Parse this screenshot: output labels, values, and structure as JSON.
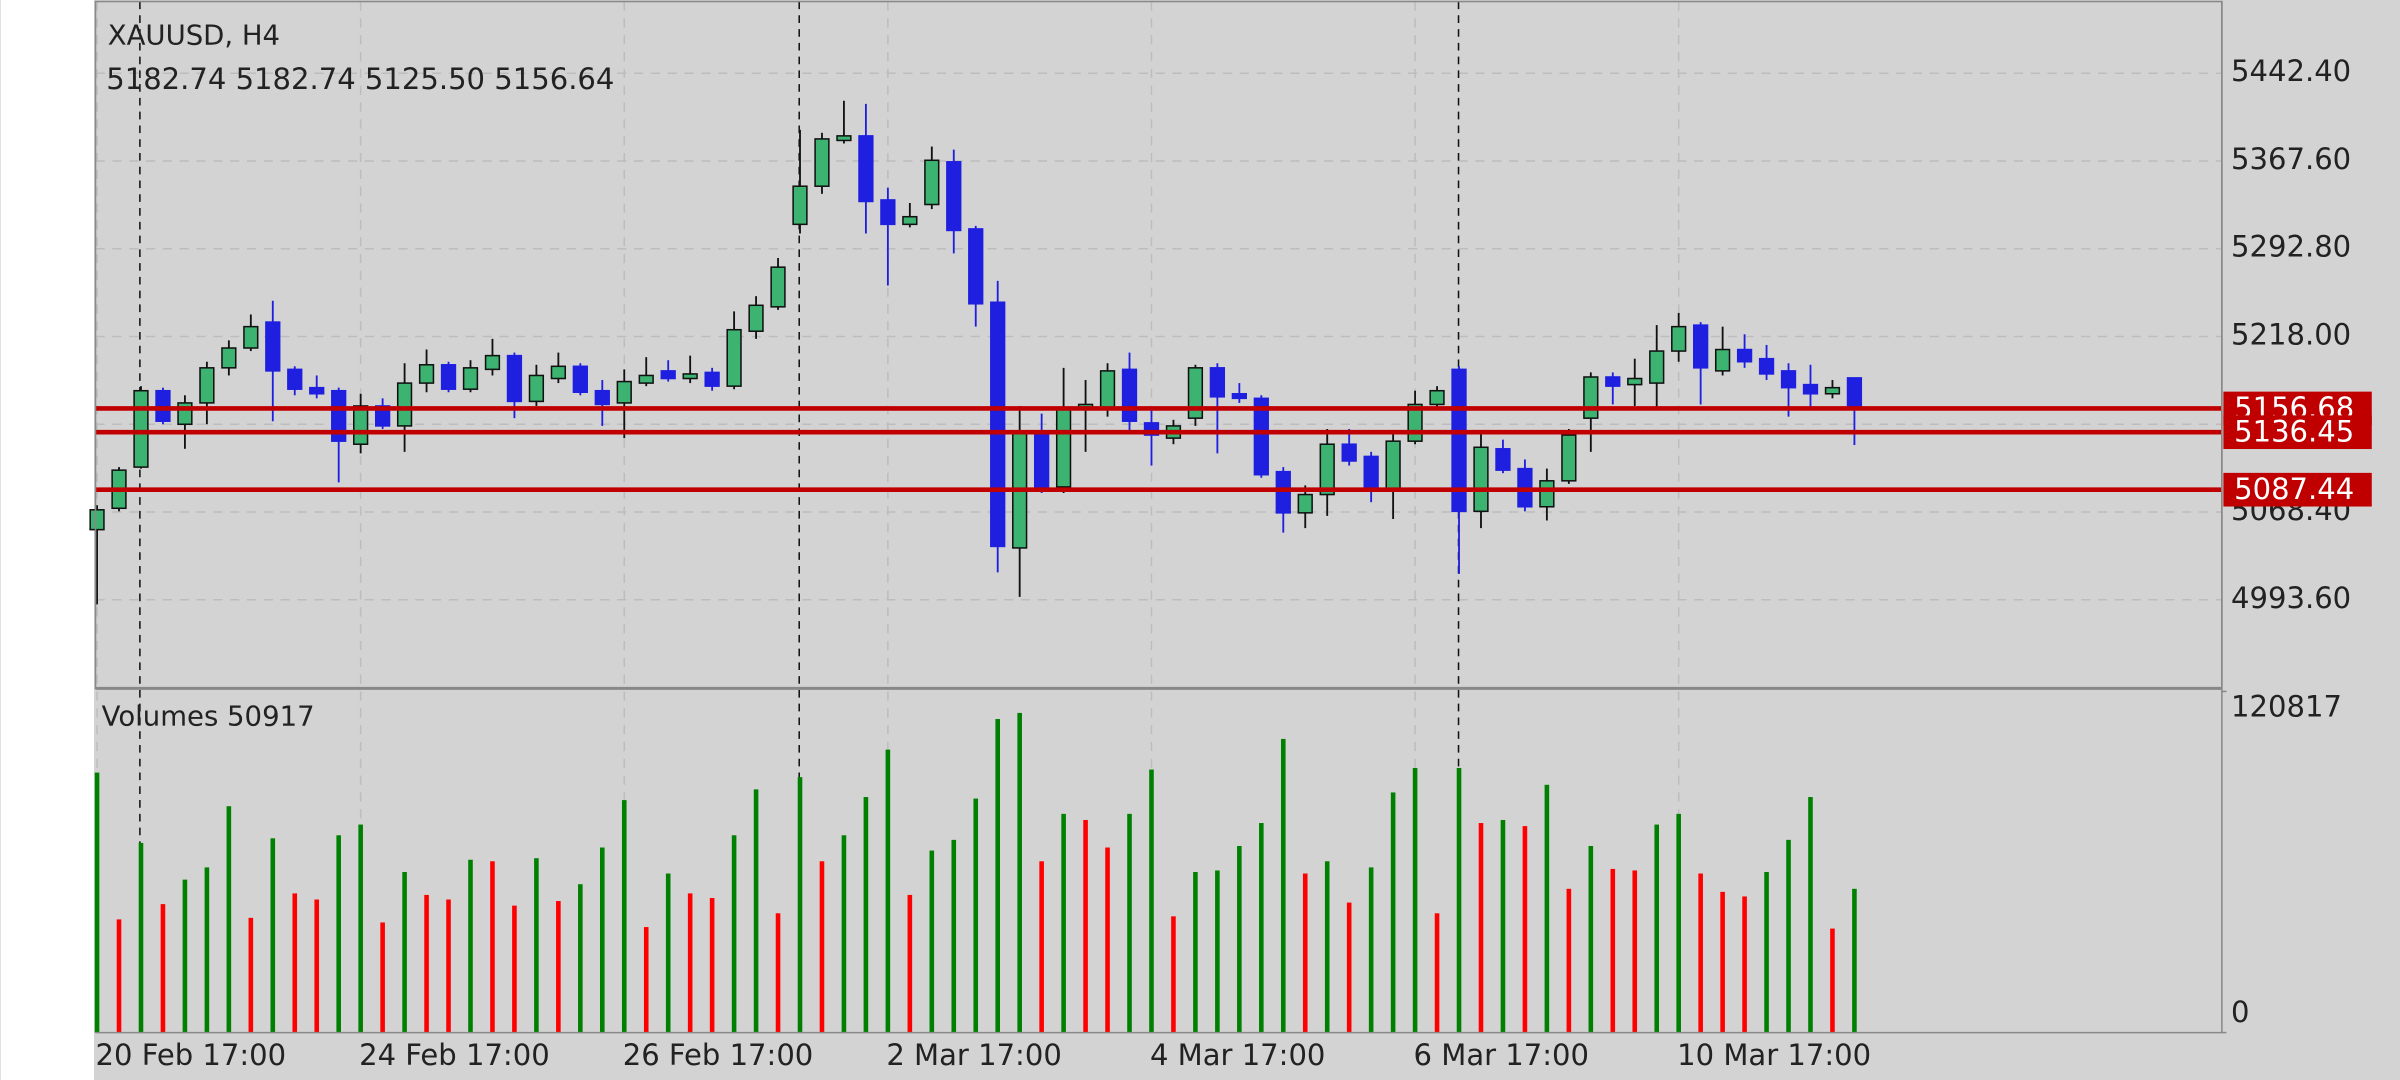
{
  "chart_data": [
    {
      "type": "candlestick",
      "title": "XAUUSD, H4",
      "subtitle": "5182.74 5182.74 5125.50 5156.64",
      "categories": [
        "20 Feb 17:00",
        null,
        null,
        null,
        null,
        null,
        null,
        null,
        null,
        null,
        null,
        null,
        "24 Feb 17:00",
        null,
        null,
        null,
        null,
        null,
        null,
        null,
        null,
        null,
        null,
        null,
        "26 Feb 17:00",
        null,
        null,
        null,
        null,
        null,
        null,
        null,
        null,
        null,
        null,
        null,
        "2 Mar 17:00",
        null,
        null,
        null,
        null,
        null,
        null,
        null,
        null,
        null,
        null,
        null,
        "4 Mar 17:00",
        null,
        null,
        null,
        null,
        null,
        null,
        null,
        null,
        null,
        null,
        null,
        "6 Mar 17:00",
        null,
        null,
        null,
        null,
        null,
        null,
        null,
        null,
        null,
        null,
        null,
        "10 Mar 17:00",
        null,
        null,
        null,
        null,
        null,
        null,
        null,
        null
      ],
      "open": [
        5053.4,
        5071.6,
        5106.7,
        5171.8,
        5143.2,
        5161.4,
        5191.3,
        5208.2,
        5230.3,
        5190.0,
        5174.4,
        5171.8,
        5126.2,
        5158.8,
        5141.8,
        5178.3,
        5193.9,
        5173.1,
        5190.0,
        5201.7,
        5162.7,
        5182.2,
        5192.6,
        5171.8,
        5161.4,
        5178.3,
        5188.7,
        5182.2,
        5187.4,
        5175.7,
        5222.5,
        5243.3,
        5313.6,
        5346.1,
        5385.1,
        5389.0,
        5334.4,
        5313.6,
        5330.5,
        5366.9,
        5309.7,
        5247.2,
        5037.8,
        5134.0,
        5089.8,
        5156.2,
        5157.5,
        5190.0,
        5144.4,
        5131.4,
        5148.4,
        5191.3,
        5169.2,
        5165.3,
        5102.8,
        5067.7,
        5083.3,
        5126.2,
        5115.8,
        5087.2,
        5128.8,
        5160.1,
        5190.0,
        5069.0,
        5122.3,
        5105.4,
        5072.9,
        5095.0,
        5148.4,
        5183.5,
        5177.0,
        5178.3,
        5205.6,
        5227.7,
        5188.7,
        5206.9,
        5199.1,
        5188.7,
        5177.0,
        5169.2,
        5182.74
      ],
      "high": [
        5074.2,
        5106.7,
        5175.7,
        5174.4,
        5167.9,
        5196.5,
        5214.7,
        5236.8,
        5248.5,
        5192.6,
        5184.8,
        5174.4,
        5169.2,
        5165.3,
        5195.2,
        5206.9,
        5196.5,
        5197.8,
        5216.0,
        5204.3,
        5193.9,
        5204.3,
        5195.2,
        5180.9,
        5190.0,
        5200.4,
        5197.8,
        5201.7,
        5191.3,
        5239.4,
        5252.4,
        5284.9,
        5394.2,
        5391.6,
        5418.9,
        5416.3,
        5344.8,
        5331.8,
        5379.9,
        5377.3,
        5312.3,
        5265.4,
        5158.8,
        5152.3,
        5191.3,
        5180.9,
        5195.2,
        5204.3,
        5154.9,
        5147.0,
        5193.9,
        5195.2,
        5178.3,
        5167.9,
        5106.7,
        5091.1,
        5139.2,
        5139.2,
        5119.7,
        5135.3,
        5171.8,
        5175.7,
        5192.6,
        5136.6,
        5130.1,
        5113.2,
        5105.4,
        5139.2,
        5187.4,
        5187.4,
        5199.1,
        5227.7,
        5238.1,
        5230.3,
        5226.4,
        5219.9,
        5210.8,
        5195.2,
        5193.9,
        5180.9,
        5182.74
      ],
      "low": [
        4989.7,
        5069.0,
        5105.4,
        5143.2,
        5122.3,
        5143.2,
        5184.8,
        5205.6,
        5145.8,
        5167.9,
        5165.3,
        5093.7,
        5118.4,
        5139.2,
        5119.7,
        5170.5,
        5170.5,
        5170.5,
        5184.8,
        5148.4,
        5158.8,
        5178.3,
        5167.9,
        5141.8,
        5131.4,
        5175.7,
        5179.6,
        5178.3,
        5171.8,
        5173.1,
        5216.0,
        5240.7,
        5305.8,
        5339.6,
        5382.5,
        5305.8,
        5261.5,
        5311.0,
        5326.6,
        5288.9,
        5226.4,
        5017.0,
        4996.1,
        5084.6,
        5084.6,
        5119.7,
        5149.7,
        5136.6,
        5108.0,
        5126.2,
        5141.8,
        5118.4,
        5161.4,
        5097.6,
        5050.8,
        5054.7,
        5065.1,
        5108.0,
        5076.8,
        5062.5,
        5126.2,
        5157.5,
        5015.7,
        5054.7,
        5101.5,
        5069.0,
        5061.2,
        5092.4,
        5119.7,
        5160.1,
        5158.8,
        5157.5,
        5196.5,
        5160.1,
        5184.8,
        5191.3,
        5180.9,
        5149.7,
        5157.5,
        5165.3,
        5125.5
      ],
      "close": [
        5070.3,
        5104.1,
        5171.8,
        5145.8,
        5161.4,
        5191.3,
        5208.2,
        5226.4,
        5188.7,
        5173.1,
        5169.2,
        5128.8,
        5158.8,
        5141.8,
        5178.3,
        5193.9,
        5173.1,
        5191.3,
        5201.7,
        5162.7,
        5184.8,
        5192.6,
        5170.5,
        5160.1,
        5179.6,
        5184.8,
        5182.2,
        5186.1,
        5175.7,
        5223.8,
        5244.6,
        5277.1,
        5346.1,
        5386.4,
        5389.0,
        5333.1,
        5313.6,
        5320.1,
        5368.2,
        5308.4,
        5245.9,
        5039.1,
        5135.3,
        5087.2,
        5156.2,
        5160.1,
        5188.7,
        5145.8,
        5134.0,
        5141.8,
        5191.3,
        5166.6,
        5165.3,
        5100.2,
        5067.7,
        5083.3,
        5126.2,
        5111.9,
        5087.2,
        5128.8,
        5160.1,
        5171.8,
        5069.0,
        5123.6,
        5104.1,
        5072.9,
        5095.0,
        5134.0,
        5183.5,
        5175.7,
        5182.2,
        5205.6,
        5226.4,
        5191.3,
        5206.9,
        5196.5,
        5186.1,
        5174.4,
        5169.2,
        5174.4,
        5156.64
      ],
      "up_color": "#3cb371",
      "down_color": "#1f1fe0",
      "ylim": [
        4919.4,
        5503.5
      ],
      "yticks": [
        {
          "value": 4993.6,
          "label": "4993.60"
        },
        {
          "value": 5068.4,
          "label": "5068.40"
        },
        {
          "value": 5143.2,
          "label": "5143.20"
        },
        {
          "value": 5218,
          "label": "5218.00"
        },
        {
          "value": 5292.8,
          "label": "5292.80"
        },
        {
          "value": 5367.6,
          "label": "5367.60"
        },
        {
          "value": 5442.4,
          "label": "5442.40"
        }
      ],
      "grid": true,
      "hlines": [
        5156.68,
        5136.45,
        5087.44
      ],
      "hline_color": "#c00000"
    },
    {
      "type": "bar",
      "title": "Volumes 50917",
      "values": [
        92089,
        40086,
        67171,
        45503,
        54170,
        58504,
        80172,
        40628,
        68796,
        49295,
        47128,
        69879,
        73671,
        39002,
        56879,
        48753,
        47128,
        61212,
        60670,
        44961,
        61754,
        46586,
        52545,
        65546,
        82338,
        37377,
        56337,
        49295,
        47670,
        69879,
        86130,
        42253,
        90464,
        60670,
        69879,
        83422,
        100215,
        48753,
        64462,
        68254,
        82880,
        111049,
        113215,
        60670,
        77463,
        75296,
        65546,
        77463,
        93172,
        41169,
        56879,
        57420,
        66087,
        74213,
        104006,
        56337,
        60670,
        46045,
        58504,
        85047,
        93714,
        42253,
        93714,
        74213,
        75296,
        73130,
        87755,
        50920,
        66087,
        57962,
        57420,
        73671,
        77463,
        56337,
        49836,
        48211,
        56879,
        68254,
        83422,
        36836,
        50917
      ],
      "up_color": "#008000",
      "down_color": "#ff0000",
      "ylim": [
        0,
        120817
      ],
      "yticks": [
        0,
        120817
      ]
    }
  ]
}
